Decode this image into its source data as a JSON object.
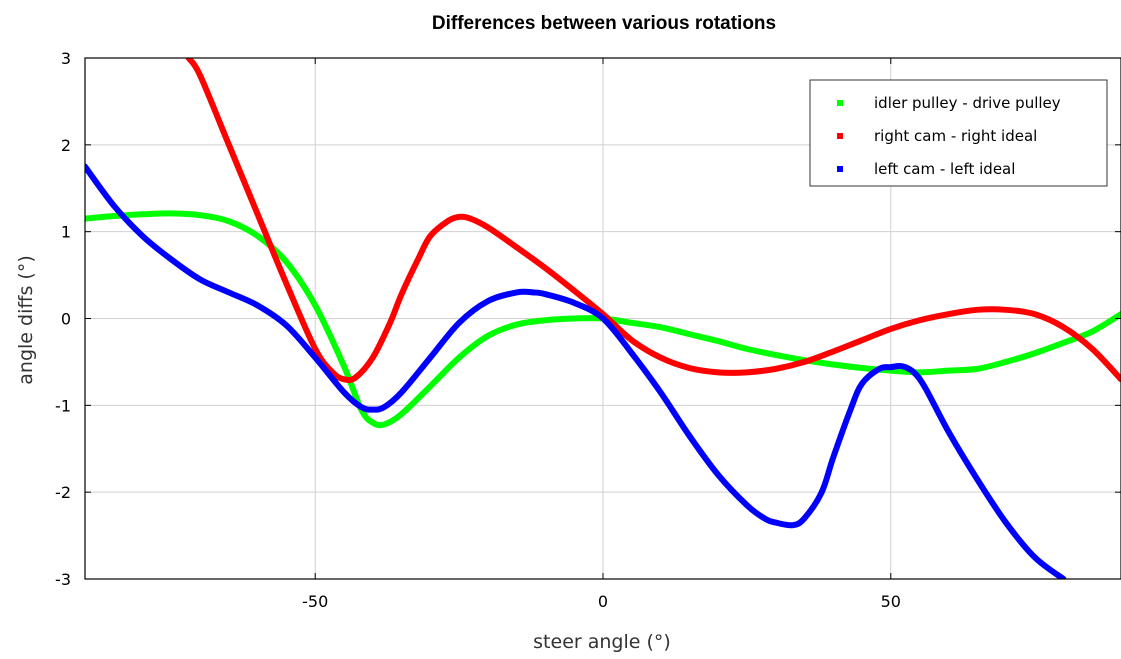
{
  "chart_data": {
    "type": "scatter",
    "title": "Differences between various rotations",
    "xlabel": "steer angle (°)",
    "ylabel": "angle diffs (°)",
    "xlim": [
      -90,
      90
    ],
    "ylim": [
      -3,
      3
    ],
    "xticks": [
      -50,
      0,
      50
    ],
    "yticks": [
      3,
      2,
      1,
      0,
      -1,
      -2,
      -3
    ],
    "grid": true,
    "legend_position": "top-right",
    "series": [
      {
        "name": "idler pulley - drive pulley",
        "color": "#00ff00",
        "x": [
          -90,
          -85,
          -80,
          -75,
          -70,
          -65,
          -60,
          -55,
          -50,
          -45,
          -42,
          -40,
          -38,
          -35,
          -30,
          -25,
          -20,
          -15,
          -10,
          -5,
          0,
          5,
          10,
          15,
          20,
          25,
          30,
          35,
          40,
          45,
          50,
          55,
          60,
          65,
          70,
          75,
          80,
          85,
          90
        ],
        "y": [
          1.15,
          1.18,
          1.2,
          1.21,
          1.19,
          1.12,
          0.95,
          0.65,
          0.15,
          -0.55,
          -1.05,
          -1.2,
          -1.22,
          -1.1,
          -0.78,
          -0.45,
          -0.2,
          -0.07,
          -0.02,
          0.0,
          0.0,
          -0.05,
          -0.1,
          -0.18,
          -0.26,
          -0.35,
          -0.42,
          -0.48,
          -0.53,
          -0.57,
          -0.6,
          -0.62,
          -0.6,
          -0.58,
          -0.5,
          -0.4,
          -0.28,
          -0.15,
          0.05
        ]
      },
      {
        "name": "right cam - right ideal",
        "color": "#ff0000",
        "x": [
          -72,
          -70,
          -65,
          -60,
          -55,
          -50,
          -47,
          -45,
          -43,
          -40,
          -37,
          -35,
          -32,
          -30,
          -27,
          -25,
          -23,
          -20,
          -15,
          -10,
          -5,
          0,
          5,
          10,
          15,
          20,
          25,
          30,
          35,
          40,
          45,
          50,
          55,
          60,
          65,
          70,
          75,
          80,
          85,
          90
        ],
        "y": [
          3.0,
          2.8,
          2.0,
          1.2,
          0.4,
          -0.35,
          -0.62,
          -0.7,
          -0.68,
          -0.45,
          -0.05,
          0.28,
          0.7,
          0.95,
          1.12,
          1.17,
          1.15,
          1.05,
          0.82,
          0.58,
          0.32,
          0.05,
          -0.25,
          -0.45,
          -0.57,
          -0.62,
          -0.62,
          -0.58,
          -0.5,
          -0.38,
          -0.25,
          -0.12,
          -0.02,
          0.05,
          0.1,
          0.1,
          0.05,
          -0.1,
          -0.35,
          -0.7
        ]
      },
      {
        "name": "left cam - left ideal",
        "color": "#0000ff",
        "x": [
          -90,
          -85,
          -80,
          -75,
          -70,
          -65,
          -60,
          -55,
          -50,
          -45,
          -42,
          -40,
          -38,
          -35,
          -30,
          -25,
          -20,
          -15,
          -12,
          -10,
          -5,
          0,
          5,
          10,
          15,
          20,
          25,
          28,
          30,
          33,
          35,
          38,
          40,
          43,
          45,
          48,
          50,
          52,
          54,
          56,
          60,
          65,
          70,
          75,
          80
        ],
        "y": [
          1.75,
          1.3,
          0.95,
          0.68,
          0.45,
          0.3,
          0.15,
          -0.08,
          -0.45,
          -0.85,
          -1.02,
          -1.05,
          -1.02,
          -0.85,
          -0.45,
          -0.05,
          0.2,
          0.3,
          0.3,
          0.28,
          0.18,
          0.0,
          -0.4,
          -0.85,
          -1.35,
          -1.8,
          -2.15,
          -2.3,
          -2.35,
          -2.38,
          -2.3,
          -2.0,
          -1.6,
          -1.05,
          -0.75,
          -0.58,
          -0.56,
          -0.55,
          -0.62,
          -0.8,
          -1.3,
          -1.85,
          -2.35,
          -2.75,
          -3.0
        ]
      }
    ]
  }
}
